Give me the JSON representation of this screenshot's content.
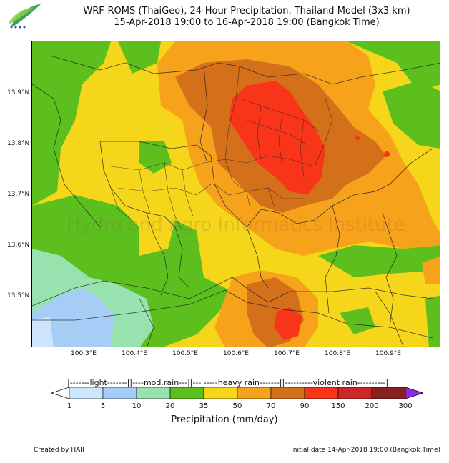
{
  "title": {
    "line1": "WRF-ROMS (ThaiGeo), 24-Hour Precipitation, Thailand Model (3x3 km)",
    "line2": "15-Apr-2018 19:00 to 16-Apr-2018 19:00 (Bangkok Time)"
  },
  "map": {
    "lat_ticks": [
      "13.9°N",
      "13.8°N",
      "13.7°N",
      "13.6°N",
      "13.5°N"
    ],
    "lon_ticks": [
      "100.3°E",
      "100.4°E",
      "100.5°E",
      "100.6°E",
      "100.7°E",
      "100.8°E",
      "100.9°E"
    ],
    "watermark": "Hydro and Agro Informatics Institute"
  },
  "legend": {
    "categories_text": "|-------light-------||----mod.rain---||--- -----heavy rain-------||----------violent rain----------|",
    "bins": [
      {
        "from": "1",
        "to": "5",
        "color": "#cce5fa"
      },
      {
        "from": "5",
        "to": "10",
        "color": "#a6cdf5"
      },
      {
        "from": "10",
        "to": "20",
        "color": "#98e2b0"
      },
      {
        "from": "20",
        "to": "35",
        "color": "#5cbf1e"
      },
      {
        "from": "35",
        "to": "50",
        "color": "#f6d61a"
      },
      {
        "from": "50",
        "to": "70",
        "color": "#f7a21b"
      },
      {
        "from": "70",
        "to": "90",
        "color": "#d4701a"
      },
      {
        "from": "90",
        "to": "150",
        "color": "#f83419"
      },
      {
        "from": "150",
        "to": "200",
        "color": "#cc2626"
      },
      {
        "from": "200",
        "to": "300",
        "color": "#8a1f1f"
      }
    ],
    "under_color": "#ffffff",
    "over_color": "#8a2be2",
    "tick_labels": [
      "1",
      "5",
      "10",
      "20",
      "35",
      "50",
      "70",
      "90",
      "150",
      "200",
      "300"
    ],
    "axis_title": "Precipitation (mm/day)"
  },
  "footer": {
    "credit": "Created by HAII",
    "initial_date": "initial date 14-Apr-2018 19:00 (Bangkok Time)"
  }
}
